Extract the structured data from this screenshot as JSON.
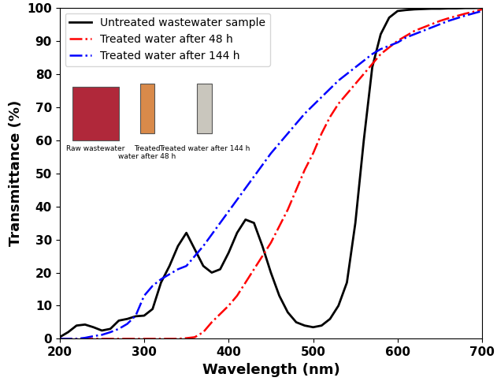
{
  "chart_data": {
    "type": "line",
    "x_label": "Wavelength (nm)",
    "y_label": "Transmittance (%)",
    "x": [
      200,
      210,
      220,
      230,
      240,
      250,
      260,
      270,
      280,
      290,
      300,
      310,
      320,
      330,
      340,
      350,
      360,
      370,
      380,
      390,
      400,
      410,
      420,
      430,
      440,
      450,
      460,
      470,
      480,
      490,
      500,
      510,
      520,
      530,
      540,
      550,
      560,
      570,
      580,
      590,
      600,
      610,
      620,
      630,
      640,
      650,
      660,
      670,
      680,
      690,
      700
    ],
    "series": [
      {
        "name": "Untreated wastewater sample",
        "color": "#000000",
        "line_style": "solid",
        "values": [
          0.5,
          2,
          4,
          4.3,
          3.5,
          2.5,
          3,
          5.5,
          6,
          6.8,
          7,
          9,
          17,
          22,
          28,
          32,
          27,
          22,
          20,
          21,
          26,
          32,
          36,
          35,
          28,
          20,
          13,
          8,
          5,
          4,
          3.5,
          4,
          6,
          10,
          17,
          35,
          60,
          82,
          92,
          97,
          99,
          99.3,
          99.5,
          99.6,
          99.7,
          99.7,
          99.8,
          99.8,
          99.9,
          99.9,
          100
        ]
      },
      {
        "name": "Treated water after 48 h",
        "color": "#ff0000",
        "line_style": "dashdot",
        "values": [
          0,
          0,
          0,
          0,
          0,
          0,
          0,
          0,
          0,
          0,
          0,
          0,
          0,
          0,
          0,
          0.2,
          0.5,
          2,
          5,
          7.5,
          10,
          13,
          17,
          21,
          25,
          29,
          34,
          39,
          45,
          51,
          56,
          62,
          67,
          71,
          74,
          77,
          80,
          83,
          86,
          88,
          90,
          91.5,
          93,
          94,
          95,
          96,
          96.8,
          97.5,
          98.2,
          98.8,
          99.5
        ]
      },
      {
        "name": "Treated water after 144 h",
        "color": "#0000ff",
        "line_style": "dashdot",
        "values": [
          0,
          0,
          0,
          0.3,
          0.8,
          1.2,
          2,
          3,
          4.5,
          7,
          13,
          16,
          18,
          19.5,
          21,
          22,
          25,
          28,
          31.5,
          35,
          38.5,
          42,
          45.5,
          49,
          52.5,
          56,
          59,
          62,
          65,
          68,
          70.5,
          73,
          75.5,
          78,
          80,
          82,
          84,
          86,
          87.5,
          88.5,
          89.5,
          91,
          92,
          93,
          94,
          95,
          96,
          96.8,
          97.6,
          98.3,
          99
        ]
      }
    ],
    "annotations": [
      "Raw wastewater",
      "Treated\nwater after 48 h",
      "Treated water after 144 h"
    ],
    "xlim": [
      200,
      700
    ],
    "xticks": [
      200,
      300,
      400,
      500,
      600,
      700
    ],
    "ylim": [
      0,
      100
    ],
    "yticks": [
      0,
      10,
      20,
      30,
      40,
      50,
      60,
      70,
      80,
      90,
      100
    ],
    "grid": false,
    "legend": "upper left"
  }
}
